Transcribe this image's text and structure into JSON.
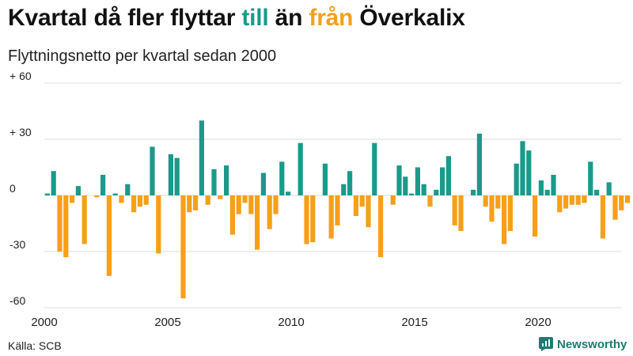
{
  "title": {
    "part1": "Kvartal då fler flyttar ",
    "till": "till",
    "part2": " än ",
    "fran": "från",
    "part3": " Överkalix"
  },
  "subtitle": "Flyttningsnetto per kvartal sedan 2000",
  "source": "Källa: SCB",
  "brand": "Newsworthy",
  "colors": {
    "positive": "#1a9a8a",
    "negative": "#f5a01a",
    "grid": "#dddddd",
    "brand": "#1a7d72"
  },
  "chart_data": {
    "type": "bar",
    "x_start": "2000 Q1",
    "ylim": [
      -60,
      60
    ],
    "y_ticks": [
      60,
      30,
      0,
      -30,
      -60
    ],
    "y_tick_labels": [
      "+ 60",
      "+ 30",
      "0",
      "-30",
      "-60"
    ],
    "x_tick_labels": [
      "2000",
      "2005",
      "2010",
      "2015",
      "2020"
    ],
    "grid": true,
    "values": [
      1,
      13,
      -30,
      -33,
      -4,
      5,
      -26,
      0,
      -1,
      11,
      -43,
      1,
      -4,
      6,
      -9,
      -6,
      -5,
      26,
      -31,
      0,
      22,
      20,
      -55,
      -9,
      -8,
      40,
      -5,
      14,
      -2,
      16,
      -21,
      -10,
      -4,
      -10,
      -29,
      12,
      -18,
      -10,
      18,
      2,
      0,
      28,
      -26,
      -25,
      0,
      17,
      -23,
      -16,
      6,
      13,
      -11,
      -6,
      -17,
      28,
      -33,
      0,
      -5,
      16,
      10,
      1,
      15,
      6,
      -6,
      3,
      15,
      21,
      -16,
      -19,
      0,
      3,
      33,
      -6,
      -14,
      -7,
      -26,
      -19,
      17,
      29,
      24,
      -22,
      8,
      3,
      11,
      -9,
      -7,
      -5,
      -5,
      -4,
      18,
      3,
      -23,
      7,
      -13,
      -8,
      -4
    ]
  }
}
